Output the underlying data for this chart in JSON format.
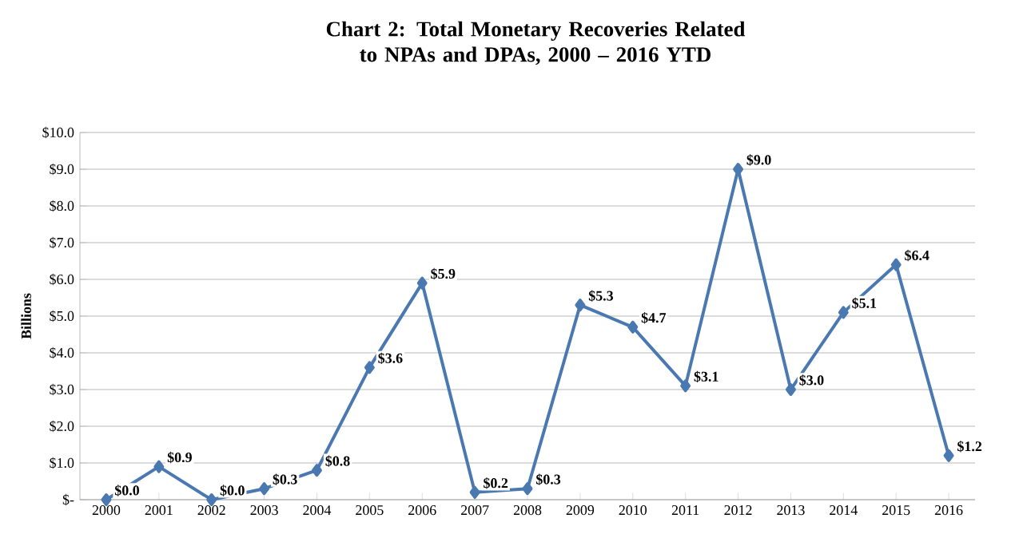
{
  "chart_data": {
    "type": "line",
    "title": "Chart 2: Total Monetary Recoveries Related to NPAs and DPAs, 2000 – 2016 YTD",
    "ylabel": "Billions",
    "categories": [
      "2000",
      "2001",
      "2002",
      "2003",
      "2004",
      "2005",
      "2006",
      "2007",
      "2008",
      "2009",
      "2010",
      "2011",
      "2012",
      "2013",
      "2014",
      "2015",
      "2016"
    ],
    "series": [
      {
        "color": "#4a78b0",
        "values": [
          0.0,
          0.9,
          0.0,
          0.3,
          0.8,
          3.6,
          5.9,
          0.2,
          0.3,
          5.3,
          4.7,
          3.1,
          9.0,
          3.0,
          5.1,
          6.4,
          1.2
        ],
        "value_labels": [
          "$0.0",
          "$0.9",
          "$0.0",
          "$0.3",
          "$0.8",
          "$3.6",
          "$5.9",
          "$0.2",
          "$0.3",
          "$5.3",
          "$4.7",
          "$3.1",
          "$9.0",
          "$3.0",
          "$5.1",
          "$6.4",
          "$1.2"
        ]
      }
    ],
    "ylim": [
      0,
      10
    ],
    "yticks": [
      {
        "value": 0,
        "label": "$-"
      },
      {
        "value": 1,
        "label": "$1.0"
      },
      {
        "value": 2,
        "label": "$2.0"
      },
      {
        "value": 3,
        "label": "$3.0"
      },
      {
        "value": 4,
        "label": "$4.0"
      },
      {
        "value": 5,
        "label": "$5.0"
      },
      {
        "value": 6,
        "label": "$6.0"
      },
      {
        "value": 7,
        "label": "$7.0"
      },
      {
        "value": 8,
        "label": "$8.0"
      },
      {
        "value": 9,
        "label": "$9.0"
      },
      {
        "value": 10,
        "label": "$10.0"
      }
    ],
    "grid": "y",
    "marker": "diamond",
    "line_style": "solid"
  }
}
